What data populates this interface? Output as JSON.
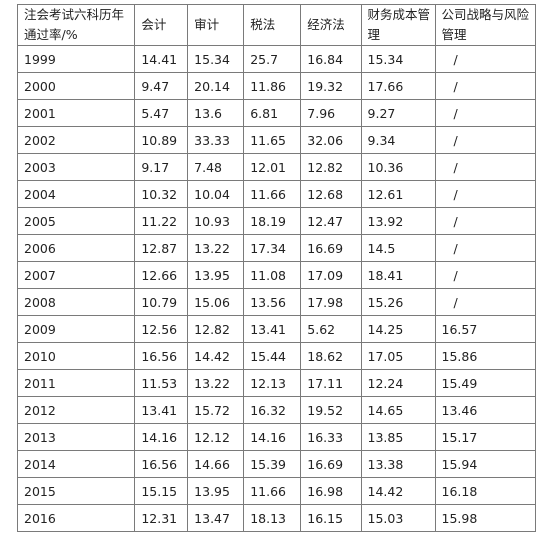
{
  "table": {
    "headers": [
      "注会考试六科历年通过率/%",
      "会计",
      "审计",
      "税法",
      "经济法",
      "财务成本管理",
      "公司战略与风险管理"
    ],
    "rows": [
      [
        "1999",
        "14.41",
        "15.34",
        "25.7",
        "16.84",
        "15.34",
        "/"
      ],
      [
        "2000",
        "9.47",
        "20.14",
        "11.86",
        "19.32",
        "17.66",
        "/"
      ],
      [
        "2001",
        "5.47",
        "13.6",
        "6.81",
        "7.96",
        "9.27",
        "/"
      ],
      [
        "2002",
        "10.89",
        "33.33",
        "11.65",
        "32.06",
        "9.34",
        "/"
      ],
      [
        "2003",
        "9.17",
        "7.48",
        "12.01",
        "12.82",
        "10.36",
        "/"
      ],
      [
        "2004",
        "10.32",
        "10.04",
        "11.66",
        "12.68",
        "12.61",
        "/"
      ],
      [
        "2005",
        "11.22",
        "10.93",
        "18.19",
        "12.47",
        "13.92",
        "/"
      ],
      [
        "2006",
        "12.87",
        "13.22",
        "17.34",
        "16.69",
        "14.5",
        "/"
      ],
      [
        "2007",
        "12.66",
        "13.95",
        "11.08",
        "17.09",
        "18.41",
        "/"
      ],
      [
        "2008",
        "10.79",
        "15.06",
        "13.56",
        "17.98",
        "15.26",
        "/"
      ],
      [
        "2009",
        "12.56",
        "12.82",
        "13.41",
        "5.62",
        "14.25",
        "16.57"
      ],
      [
        "2010",
        "16.56",
        "14.42",
        "15.44",
        "18.62",
        "17.05",
        "15.86"
      ],
      [
        "2011",
        "11.53",
        "13.22",
        "12.13",
        "17.11",
        "12.24",
        "15.49"
      ],
      [
        "2012",
        "13.41",
        "15.72",
        "16.32",
        "19.52",
        "14.65",
        "13.46"
      ],
      [
        "2013",
        "14.16",
        "12.12",
        "14.16",
        "16.33",
        "13.85",
        "15.17"
      ],
      [
        "2014",
        "16.56",
        "14.66",
        "15.39",
        "16.69",
        "13.38",
        "15.94"
      ],
      [
        "2015",
        "15.15",
        "13.95",
        "11.66",
        "16.98",
        "14.42",
        "16.18"
      ],
      [
        "2016",
        "12.31",
        "13.47",
        "18.13",
        "16.15",
        "15.03",
        "15.98"
      ]
    ]
  }
}
